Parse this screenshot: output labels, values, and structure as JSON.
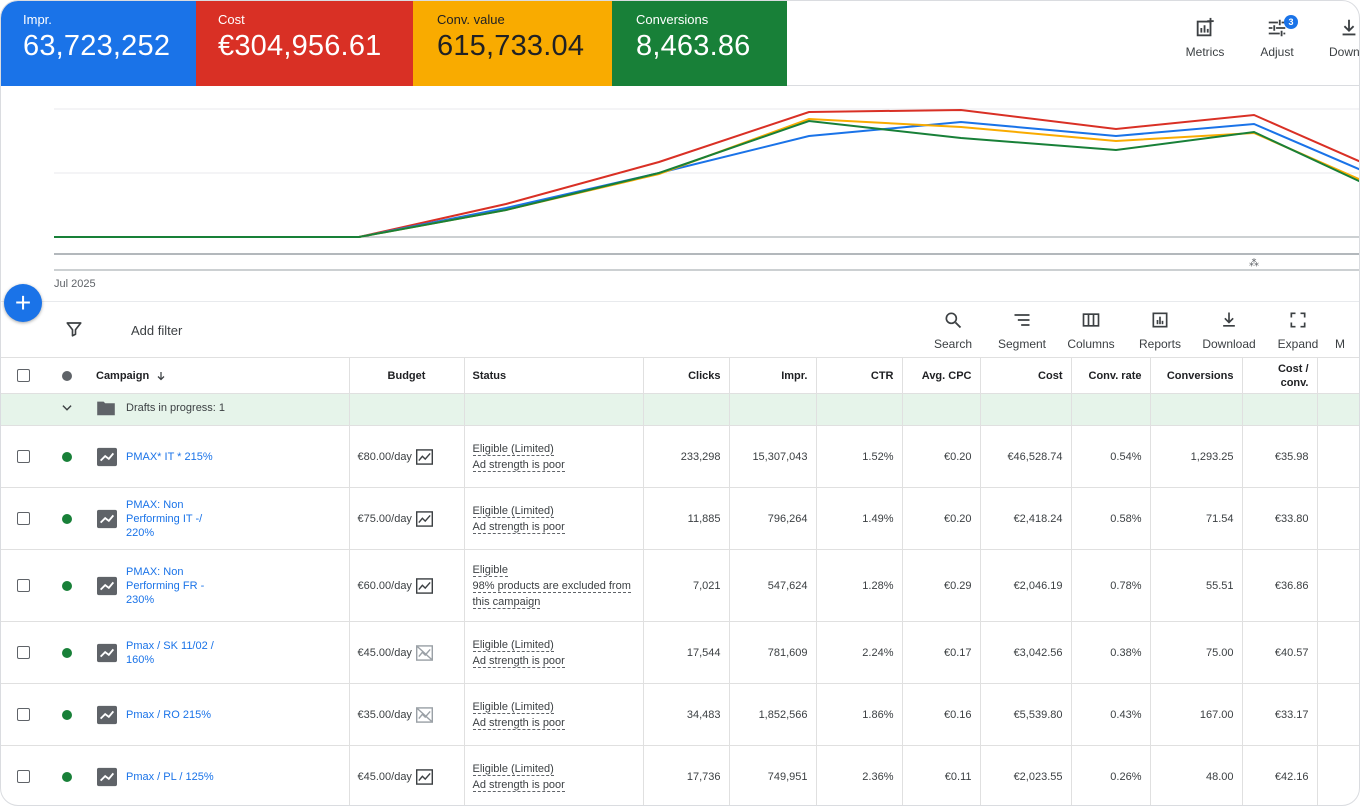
{
  "scorecards": [
    {
      "label": "Impr.",
      "value": "63,723,252",
      "color": "#1a73e8"
    },
    {
      "label": "Cost",
      "value": "€304,956.61",
      "color": "#d93025"
    },
    {
      "label": "Conv. value",
      "value": "615,733.04",
      "color": "#f9ab00"
    },
    {
      "label": "Conversions",
      "value": "8,463.86",
      "color": "#188038"
    }
  ],
  "top_tools": {
    "metrics": "Metrics",
    "adjust": "Adjust",
    "adjust_badge": "3",
    "download": "Downlo"
  },
  "chart": {
    "date_label": "Jul 2025"
  },
  "filter": {
    "add_filter": "Add filter"
  },
  "toolbar": {
    "search": "Search",
    "segment": "Segment",
    "columns": "Columns",
    "reports": "Reports",
    "download": "Download",
    "expand": "Expand",
    "more": "M"
  },
  "table": {
    "headers": {
      "campaign": "Campaign",
      "budget": "Budget",
      "status": "Status",
      "clicks": "Clicks",
      "impr": "Impr.",
      "ctr": "CTR",
      "avg_cpc": "Avg. CPC",
      "cost": "Cost",
      "conv_rate": "Conv. rate",
      "conversions": "Conversions",
      "cost_conv_1": "Cost /",
      "cost_conv_2": "conv."
    },
    "drafts": "Drafts in progress: 1",
    "rows": [
      {
        "name": [
          "PMAX* IT * 215%"
        ],
        "budget": "€80.00/day",
        "status1": "Eligible (Limited)",
        "status2": "Ad strength is poor",
        "status3": "",
        "clicks": "233,298",
        "impr": "15,307,043",
        "ctr": "1.52%",
        "cpc": "€0.20",
        "cost": "€46,528.74",
        "conv_rate": "0.54%",
        "conversions": "1,293.25",
        "cost_conv": "€35.98"
      },
      {
        "name": [
          "PMAX: Non",
          "Performing IT -/",
          "220%"
        ],
        "budget": "€75.00/day",
        "status1": "Eligible (Limited)",
        "status2": "Ad strength is poor",
        "status3": "",
        "clicks": "11,885",
        "impr": "796,264",
        "ctr": "1.49%",
        "cpc": "€0.20",
        "cost": "€2,418.24",
        "conv_rate": "0.58%",
        "conversions": "71.54",
        "cost_conv": "€33.80"
      },
      {
        "name": [
          "PMAX: Non",
          "Performing FR -",
          "230%"
        ],
        "budget": "€60.00/day",
        "status1": "Eligible",
        "status2": "98% products are excluded from",
        "status3": "this campaign",
        "clicks": "7,021",
        "impr": "547,624",
        "ctr": "1.28%",
        "cpc": "€0.29",
        "cost": "€2,046.19",
        "conv_rate": "0.78%",
        "conversions": "55.51",
        "cost_conv": "€36.86"
      },
      {
        "name": [
          "Pmax / SK 11/02 /",
          "160%"
        ],
        "budget": "€45.00/day",
        "status1": "Eligible (Limited)",
        "status2": "Ad strength is poor",
        "status3": "",
        "clicks": "17,544",
        "impr": "781,609",
        "ctr": "2.24%",
        "cpc": "€0.17",
        "cost": "€3,042.56",
        "conv_rate": "0.38%",
        "conversions": "75.00",
        "cost_conv": "€40.57"
      },
      {
        "name": [
          "Pmax / RO 215%"
        ],
        "budget": "€35.00/day",
        "status1": "Eligible (Limited)",
        "status2": "Ad strength is poor",
        "status3": "",
        "clicks": "34,483",
        "impr": "1,852,566",
        "ctr": "1.86%",
        "cpc": "€0.16",
        "cost": "€5,539.80",
        "conv_rate": "0.43%",
        "conversions": "167.00",
        "cost_conv": "€33.17"
      },
      {
        "name": [
          "Pmax / PL / 125%"
        ],
        "budget": "€45.00/day",
        "status1": "Eligible (Limited)",
        "status2": "Ad strength is poor",
        "status3": "",
        "clicks": "17,736",
        "impr": "749,951",
        "ctr": "2.36%",
        "cpc": "€0.11",
        "cost": "€2,023.55",
        "conv_rate": "0.26%",
        "conversions": "48.00",
        "cost_conv": "€42.16"
      }
    ]
  }
}
